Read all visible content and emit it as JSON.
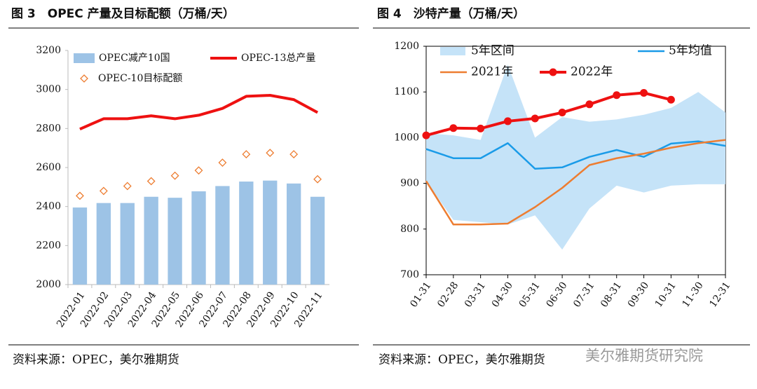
{
  "chart_data": [
    {
      "type": "bar",
      "title": "图 3　OPEC 产量及目标配额（万桶/天）",
      "source": "资料来源：OPEC，美尔雅期货",
      "categories": [
        "2022-01",
        "2022-02",
        "2022-03",
        "2022-04",
        "2022-05",
        "2022-06",
        "2022-07",
        "2022-08",
        "2022-09",
        "2022-10",
        "2022-11"
      ],
      "series": [
        {
          "name": "OPEC减产10国",
          "kind": "bar",
          "color": "#9dc3e6",
          "values": [
            2395,
            2418,
            2418,
            2450,
            2445,
            2478,
            2505,
            2528,
            2533,
            2518,
            2450
          ]
        },
        {
          "name": "OPEC-13总产量",
          "kind": "line",
          "color": "#ee1111",
          "values": [
            2797,
            2850,
            2850,
            2865,
            2850,
            2868,
            2903,
            2965,
            2970,
            2948,
            2882
          ]
        },
        {
          "name": "OPEC-10目标配额",
          "kind": "scatter",
          "color": "#ed7d31",
          "values": [
            2455,
            2480,
            2505,
            2530,
            2558,
            2585,
            2625,
            2668,
            2675,
            2668,
            2540
          ]
        }
      ],
      "ylim": [
        2000,
        3200
      ],
      "yticks": [
        2000,
        2200,
        2400,
        2600,
        2800,
        3000,
        3200
      ]
    },
    {
      "type": "line",
      "title": "图 4　沙特产量（万桶/天）",
      "source": "资料来源：OPEC，美尔雅期货",
      "watermark": "美尔雅期货研究院",
      "categories": [
        "01-31",
        "02-28",
        "03-31",
        "04-30",
        "05-31",
        "06-30",
        "07-31",
        "08-31",
        "09-30",
        "10-31",
        "11-30",
        "12-31"
      ],
      "series": [
        {
          "name": "5年区间",
          "kind": "range",
          "color": "#c5e3f8",
          "high": [
            1010,
            1005,
            995,
            1160,
            1000,
            1045,
            1035,
            1040,
            1050,
            1065,
            1100,
            1055
          ],
          "low": [
            905,
            820,
            815,
            810,
            830,
            755,
            845,
            895,
            880,
            895,
            898,
            898
          ]
        },
        {
          "name": "5年均值",
          "kind": "line",
          "color": "#1a9be8",
          "values": [
            975,
            955,
            955,
            988,
            932,
            935,
            958,
            973,
            958,
            987,
            992,
            982
          ]
        },
        {
          "name": "2021年",
          "kind": "line",
          "color": "#ed7d31",
          "values": [
            905,
            810,
            810,
            812,
            848,
            890,
            940,
            955,
            965,
            978,
            988,
            995
          ]
        },
        {
          "name": "2022年",
          "kind": "markerline",
          "color": "#ee1111",
          "values": [
            1005,
            1021,
            1020,
            1036,
            1042,
            1055,
            1073,
            1093,
            1098,
            1083,
            null,
            null
          ]
        }
      ],
      "ylim": [
        700,
        1200
      ],
      "yticks": [
        700,
        800,
        900,
        1000,
        1100,
        1200
      ]
    }
  ]
}
